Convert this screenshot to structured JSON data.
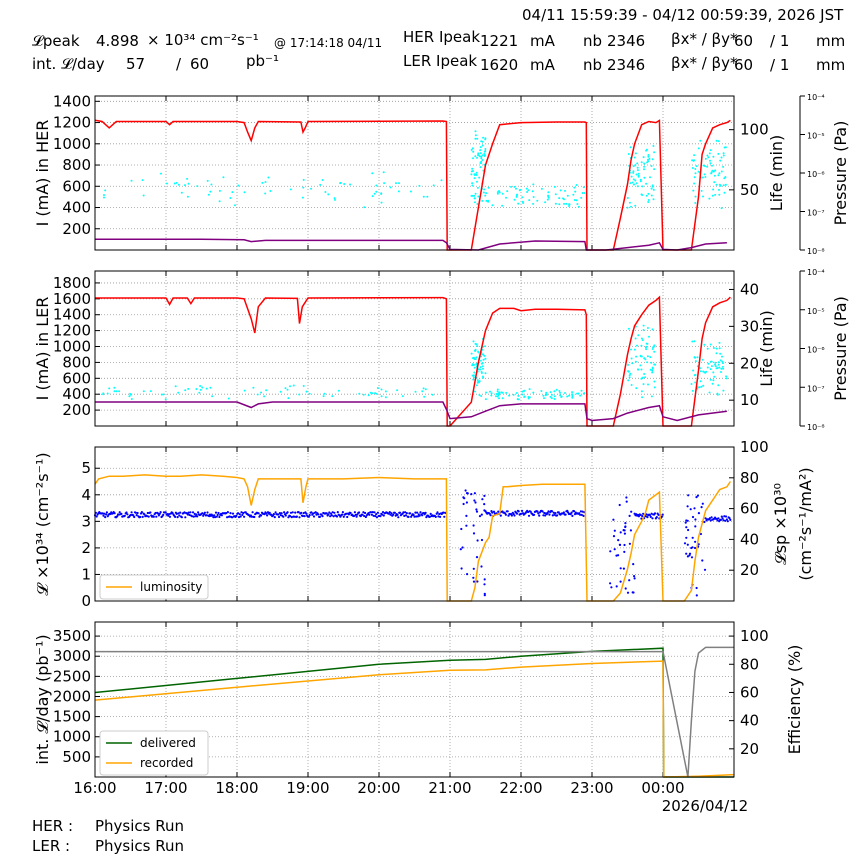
{
  "header": {
    "time_range": "04/11 15:59:39 - 04/12 00:59:39, 2026 JST",
    "lpeak_label": "𝓛peak",
    "lpeak_value": "4.898",
    "lpeak_unit": "× 10³⁴ cm⁻²s⁻¹",
    "lpeak_time": "@ 17:14:18 04/11",
    "intl_label": "int. 𝓛/day",
    "intl_value": "57",
    "intl_sep": "/",
    "intl_total": "60",
    "intl_unit": "pb⁻¹",
    "her_label": "HER Ipeak",
    "her_value": "1221",
    "her_unit": "mA",
    "ler_label": "LER Ipeak",
    "ler_value": "1620",
    "ler_unit": "mA",
    "nb_label": "nb",
    "nb_her": "2346",
    "nb_ler": "2346",
    "beta_label": "βx* / βy*",
    "beta_x": "60",
    "beta_sep": "/ 1",
    "beta_unit": "mm"
  },
  "footer": {
    "her_label": "HER :",
    "her_status": "Physics Run",
    "ler_label": "LER :",
    "ler_status": "Physics Run"
  },
  "colors": {
    "current": "#ff0000",
    "life": "#800080",
    "pressure": "#00ffff",
    "luminosity": "#ffa500",
    "specific": "#0000ff",
    "delivered": "#006400",
    "recorded": "#ffa500",
    "efficiency": "#808080"
  },
  "chart_data": [
    {
      "type": "line",
      "ylabel": "I (mA) in HER",
      "y2label": "Life (min)",
      "y3label": "Pressure (Pa)",
      "ylim": [
        0,
        1450
      ],
      "yticks": [
        200,
        400,
        600,
        800,
        1000,
        1200,
        1400
      ],
      "y2lim": [
        0,
        128
      ],
      "y2ticks": [
        50,
        100
      ],
      "y3ticks": [
        "10⁻⁸",
        "10⁻⁷",
        "10⁻⁶",
        "10⁻⁵",
        "10⁻⁴"
      ],
      "series": [
        {
          "role": "current",
          "x": [
            16.0,
            16.1,
            16.2,
            16.3,
            17.0,
            17.05,
            17.1,
            18.0,
            18.1,
            18.15,
            18.2,
            18.25,
            18.3,
            18.9,
            18.93,
            18.96,
            19.0,
            20.9,
            20.95,
            20.96,
            21.3,
            21.4,
            21.5,
            21.6,
            21.7,
            22.0,
            22.5,
            22.9,
            22.92,
            22.93,
            23.3,
            23.4,
            23.5,
            23.55,
            23.6,
            23.7,
            23.8,
            23.9,
            23.95,
            24.0,
            24.4,
            24.5,
            24.55,
            24.6,
            24.7,
            24.8,
            24.9,
            24.95
          ],
          "y": [
            1221,
            1210,
            1150,
            1210,
            1210,
            1180,
            1210,
            1210,
            1200,
            1110,
            1030,
            1150,
            1210,
            1205,
            1110,
            1150,
            1210,
            1215,
            1210,
            0,
            0,
            400,
            800,
            1000,
            1180,
            1200,
            1205,
            1205,
            1200,
            0,
            0,
            300,
            620,
            850,
            1000,
            1180,
            1210,
            1200,
            1220,
            0,
            0,
            500,
            900,
            1000,
            1150,
            1180,
            1200,
            1220
          ]
        },
        {
          "role": "life",
          "x": [
            16.0,
            17.5,
            18.1,
            18.2,
            18.4,
            19.5,
            20.9,
            20.95,
            21.0,
            21.4,
            21.7,
            22.2,
            22.9,
            22.92,
            22.95,
            23.2,
            23.5,
            23.8,
            23.95,
            24.0,
            24.2,
            24.4,
            24.6,
            24.9
          ],
          "y": [
            9,
            9,
            8.5,
            7,
            8,
            8,
            8,
            6,
            0.5,
            0,
            5,
            7.5,
            7,
            0,
            0,
            0,
            2,
            4,
            6,
            0.5,
            0,
            2,
            5,
            6
          ]
        }
      ]
    },
    {
      "type": "line",
      "ylabel": "I (mA) in LER",
      "y2label": "Life (min)",
      "y3label": "Pressure (Pa)",
      "ylim": [
        0,
        1950
      ],
      "yticks": [
        200,
        400,
        600,
        800,
        1000,
        1200,
        1400,
        1600,
        1800
      ],
      "y2lim": [
        3,
        45
      ],
      "y2ticks": [
        10,
        20,
        30,
        40
      ],
      "y3ticks": [
        "10⁻⁸",
        "10⁻⁷",
        "10⁻⁶",
        "10⁻⁵",
        "10⁻⁴"
      ],
      "series": [
        {
          "role": "current",
          "x": [
            16.0,
            17.0,
            17.05,
            17.1,
            17.3,
            17.35,
            17.4,
            18.0,
            18.1,
            18.2,
            18.25,
            18.3,
            18.4,
            18.85,
            18.88,
            18.92,
            19.0,
            20.9,
            20.95,
            20.96,
            21.0,
            21.3,
            21.4,
            21.5,
            21.6,
            21.7,
            21.9,
            22.0,
            22.2,
            22.5,
            22.9,
            22.92,
            22.93,
            23.3,
            23.4,
            23.5,
            23.55,
            23.6,
            23.7,
            23.8,
            23.9,
            23.95,
            24.0,
            24.4,
            24.5,
            24.55,
            24.6,
            24.7,
            24.8,
            24.9,
            24.95
          ],
          "y": [
            1610,
            1610,
            1530,
            1610,
            1610,
            1540,
            1610,
            1610,
            1600,
            1350,
            1170,
            1500,
            1610,
            1605,
            1290,
            1500,
            1610,
            1615,
            1600,
            0,
            0,
            300,
            800,
            1200,
            1420,
            1480,
            1480,
            1450,
            1470,
            1470,
            1460,
            1400,
            0,
            0,
            400,
            900,
            1100,
            1260,
            1400,
            1520,
            1580,
            1620,
            0,
            0,
            700,
            1100,
            1300,
            1500,
            1550,
            1580,
            1620
          ]
        },
        {
          "role": "life",
          "x": [
            16.0,
            17.0,
            18.0,
            18.2,
            18.3,
            18.5,
            19.0,
            20.9,
            20.95,
            21.0,
            21.3,
            21.5,
            21.7,
            22.0,
            22.9,
            22.93,
            23.0,
            23.3,
            23.5,
            23.8,
            23.95,
            24.0,
            24.2,
            24.5,
            24.9
          ],
          "y": [
            9.5,
            9.5,
            9.5,
            8,
            9,
            9.5,
            9.5,
            9.5,
            7.5,
            5,
            5.5,
            7,
            8.5,
            9,
            9,
            5,
            4.5,
            5,
            6.5,
            8,
            8.5,
            5.5,
            4.5,
            6,
            7
          ]
        }
      ]
    },
    {
      "type": "line",
      "ylabel": "𝓛 ×10³⁴ (cm⁻²s⁻¹)",
      "y2label": "𝓛sp ×10³⁰ (cm⁻²s⁻¹/mA²)",
      "ylim": [
        0,
        5.8
      ],
      "yticks": [
        0,
        1,
        2,
        3,
        4,
        5
      ],
      "y2lim": [
        0,
        100
      ],
      "y2ticks": [
        20,
        40,
        60,
        80,
        100
      ],
      "legend": [
        "luminosity"
      ],
      "legend_position": "lower-left",
      "series": [
        {
          "name": "luminosity",
          "x": [
            16.0,
            16.05,
            16.2,
            16.4,
            16.7,
            17.0,
            17.2,
            17.5,
            17.8,
            18.0,
            18.1,
            18.15,
            18.2,
            18.25,
            18.3,
            18.9,
            18.93,
            18.97,
            19.0,
            19.5,
            20.0,
            20.5,
            20.95,
            20.96,
            21.3,
            21.35,
            21.4,
            21.5,
            21.55,
            21.6,
            21.7,
            21.75,
            21.8,
            22.0,
            22.3,
            22.6,
            22.9,
            22.93,
            23.3,
            23.4,
            23.5,
            23.55,
            23.6,
            23.7,
            23.75,
            23.8,
            23.9,
            23.95,
            24.0,
            24.3,
            24.4,
            24.45,
            24.5,
            24.6,
            24.7,
            24.8,
            24.9,
            24.95
          ],
          "y": [
            4.4,
            4.6,
            4.7,
            4.7,
            4.75,
            4.7,
            4.7,
            4.75,
            4.7,
            4.65,
            4.6,
            4.3,
            3.6,
            4.2,
            4.6,
            4.6,
            3.7,
            4.3,
            4.6,
            4.6,
            4.65,
            4.6,
            4.6,
            0,
            0,
            0.5,
            1.5,
            2.2,
            2.4,
            3.2,
            3.3,
            4.3,
            4.3,
            4.35,
            4.4,
            4.4,
            4.4,
            0,
            0,
            0.3,
            1.2,
            1.8,
            2.5,
            3.0,
            3.3,
            3.8,
            4.0,
            4.1,
            0,
            0,
            0.4,
            1.5,
            2.4,
            3.4,
            3.8,
            4.2,
            4.3,
            4.5
          ]
        }
      ]
    },
    {
      "type": "line",
      "ylabel": "int. 𝓛/day (pb⁻¹)",
      "y2label": "Efficiency (%)",
      "ylim": [
        0,
        3850
      ],
      "yticks": [
        500,
        1000,
        1500,
        2000,
        2500,
        3000,
        3500
      ],
      "y2lim": [
        0,
        110
      ],
      "y2ticks": [
        20,
        40,
        60,
        80,
        100
      ],
      "legend": [
        "delivered",
        "recorded"
      ],
      "legend_position": "lower-left",
      "series": [
        {
          "name": "delivered",
          "x": [
            16.0,
            18.0,
            20.0,
            21.0,
            21.5,
            22.0,
            23.0,
            24.0,
            24.01,
            25.0
          ],
          "y": [
            2100,
            2450,
            2800,
            2900,
            2920,
            3000,
            3120,
            3200,
            0,
            0
          ]
        },
        {
          "name": "recorded",
          "x": [
            16.0,
            18.0,
            20.0,
            21.0,
            21.5,
            22.0,
            23.0,
            24.0,
            24.01,
            24.5,
            25.0
          ],
          "y": [
            1910,
            2230,
            2540,
            2650,
            2660,
            2730,
            2820,
            2880,
            0,
            20,
            60
          ]
        },
        {
          "role": "efficiency",
          "x": [
            16.0,
            20.0,
            24.0,
            24.35,
            24.4,
            24.45,
            24.5,
            24.6,
            25.0
          ],
          "y": [
            89,
            89,
            89,
            0,
            40,
            75,
            88,
            92,
            92
          ]
        }
      ]
    }
  ],
  "xaxis": {
    "xlim": [
      16.0,
      25.0
    ],
    "ticks": [
      16,
      17,
      18,
      19,
      20,
      21,
      22,
      23,
      24
    ],
    "labels": [
      "16:00",
      "17:00",
      "18:00",
      "19:00",
      "20:00",
      "21:00",
      "22:00",
      "23:00",
      "00:00"
    ],
    "date_label": "2026/04/12"
  }
}
